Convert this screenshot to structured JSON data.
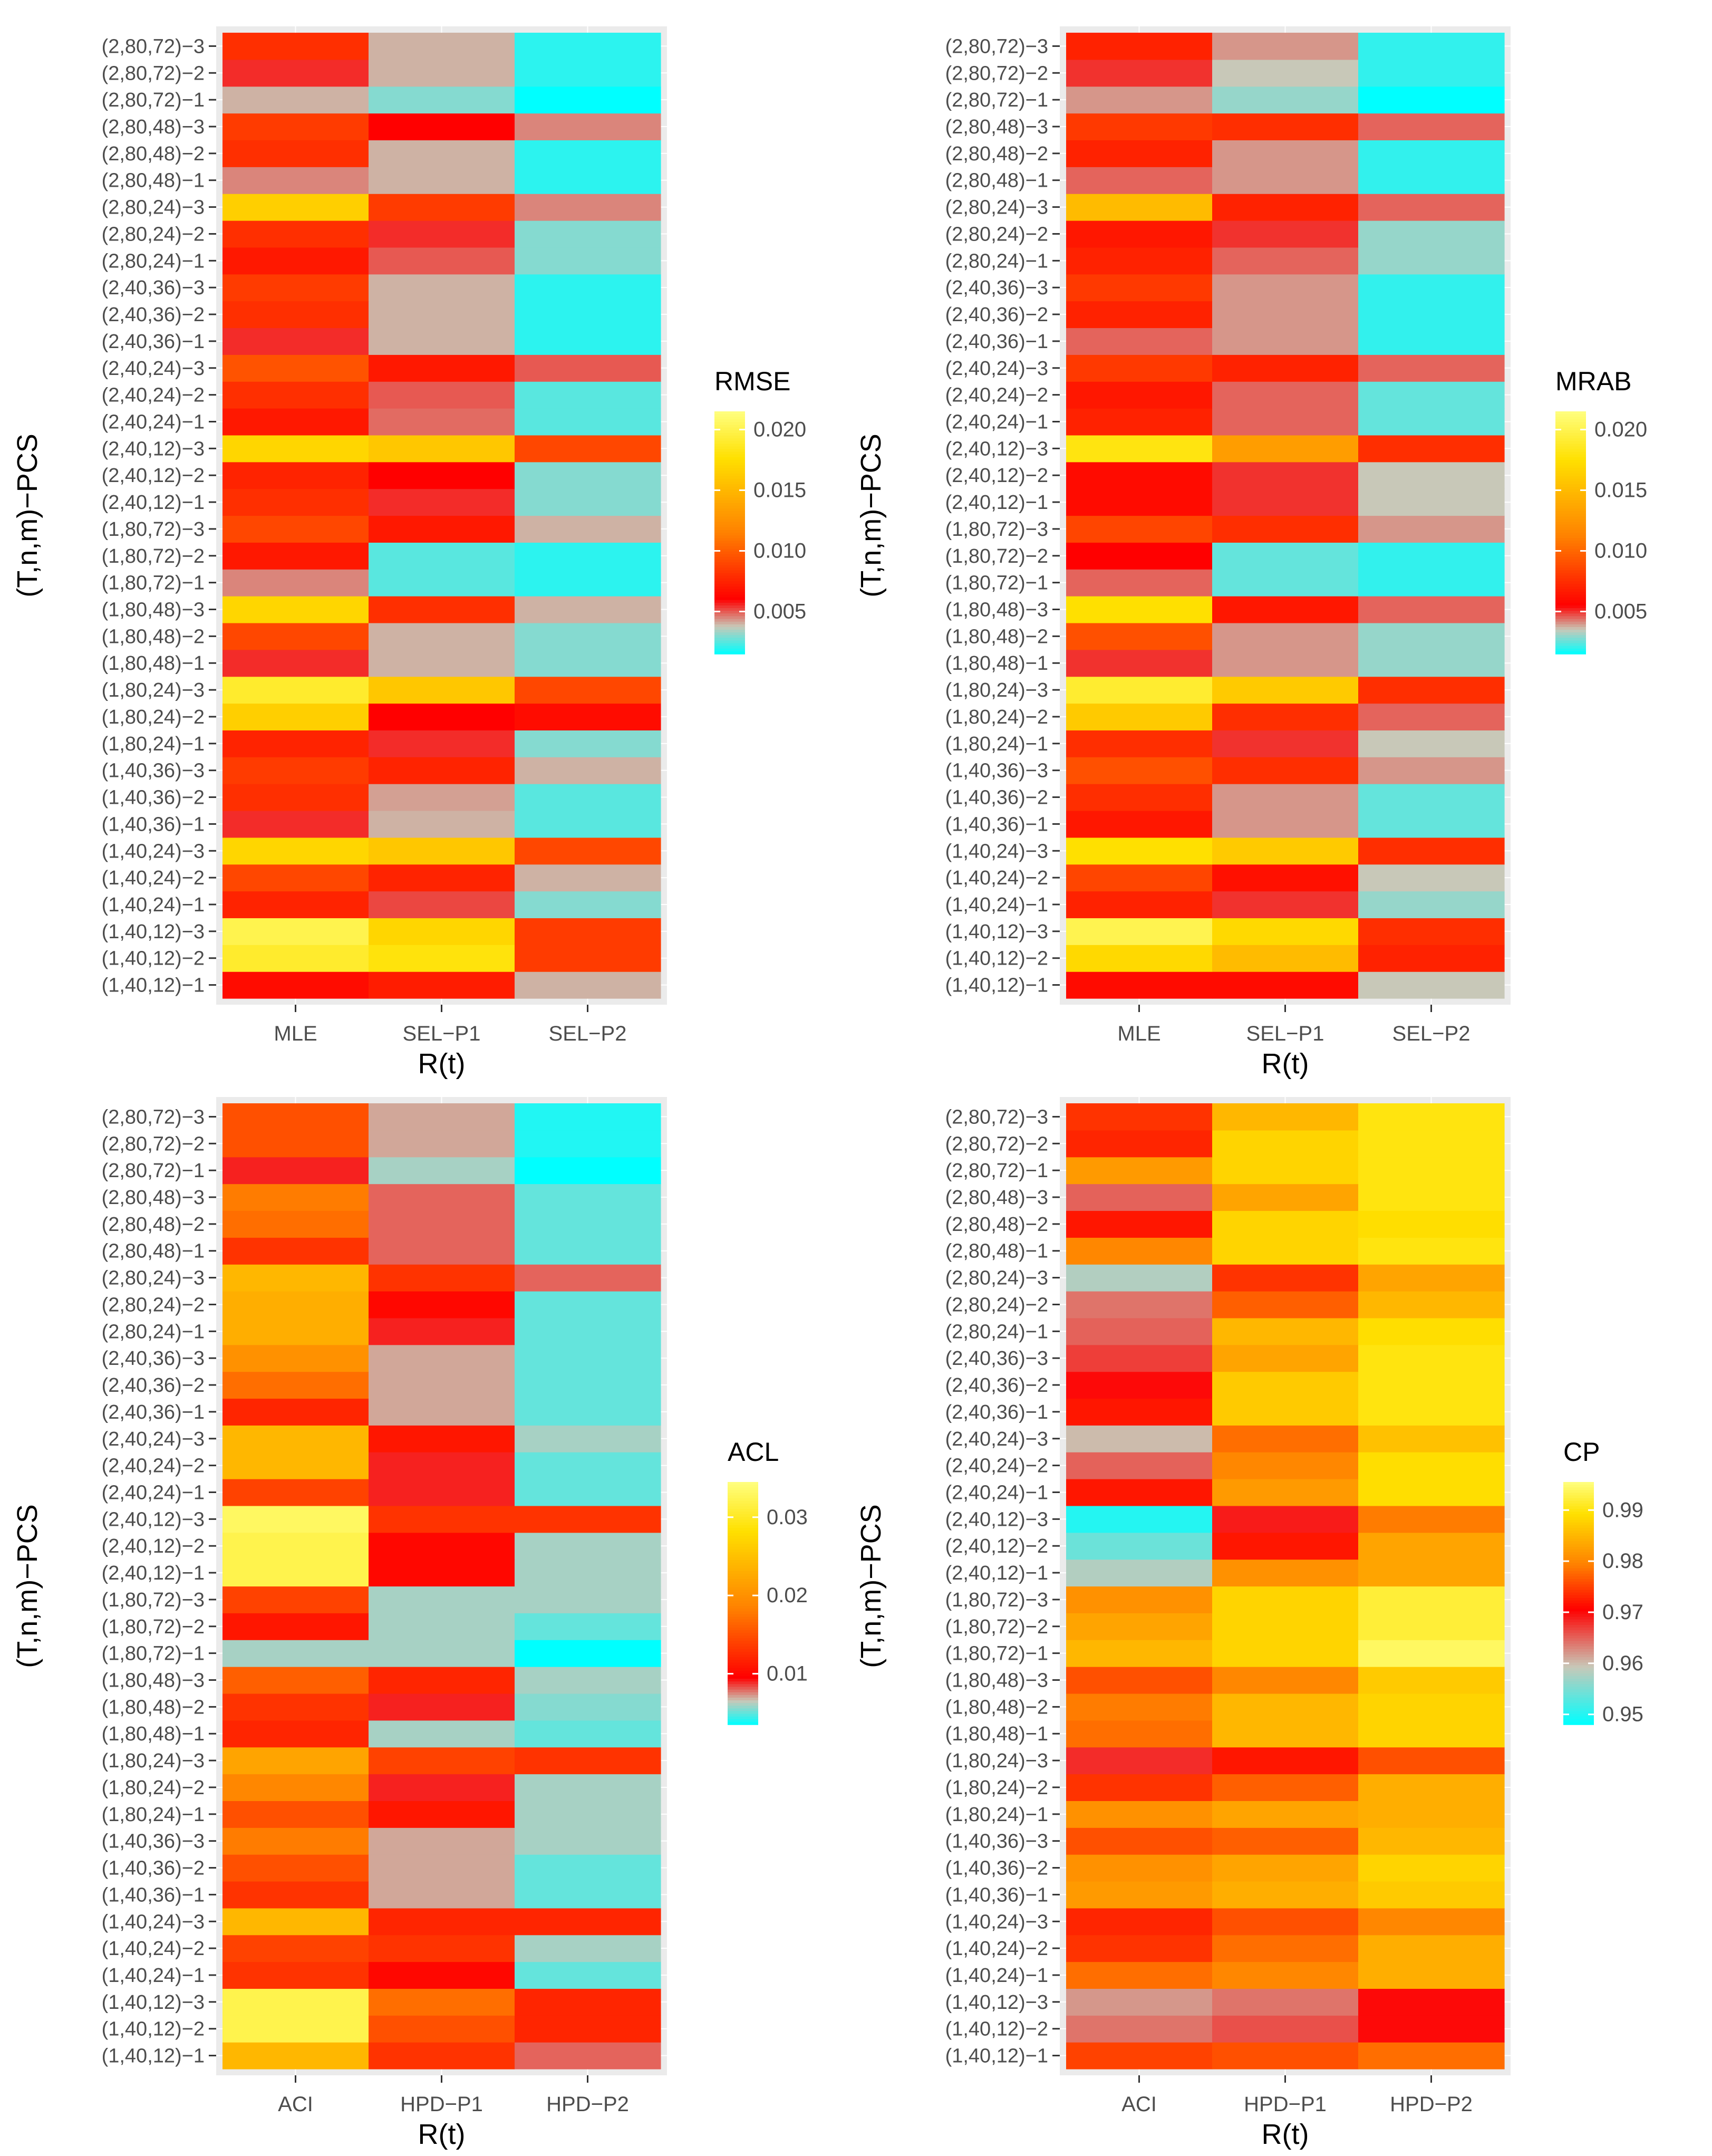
{
  "colors": {
    "panel_background": "#ebebeb",
    "gridline": "#ffffff",
    "tick_text": "#4d4d4d",
    "axis_title": "#000000",
    "scale_low": "#00ffff",
    "scale_mid": "#ff0000",
    "scale_high": "#ffff80"
  },
  "chart_data": [
    {
      "type": "heatmap",
      "title": "",
      "xlabel": "R(t)",
      "ylabel": "(T,n,m)−PCS",
      "legend_title": "RMSE",
      "legend_position": "right",
      "x": [
        "MLE",
        "SEL−P1",
        "SEL−P2"
      ],
      "y": [
        "(1,40,12)−1",
        "(1,40,12)−2",
        "(1,40,12)−3",
        "(1,40,24)−1",
        "(1,40,24)−2",
        "(1,40,24)−3",
        "(1,40,36)−1",
        "(1,40,36)−2",
        "(1,40,36)−3",
        "(1,80,24)−1",
        "(1,80,24)−2",
        "(1,80,24)−3",
        "(1,80,48)−1",
        "(1,80,48)−2",
        "(1,80,48)−3",
        "(1,80,72)−1",
        "(1,80,72)−2",
        "(1,80,72)−3",
        "(2,40,12)−1",
        "(2,40,12)−2",
        "(2,40,12)−3",
        "(2,40,24)−1",
        "(2,40,24)−2",
        "(2,40,24)−3",
        "(2,40,36)−1",
        "(2,40,36)−2",
        "(2,40,36)−3",
        "(2,80,24)−1",
        "(2,80,24)−2",
        "(2,80,24)−3",
        "(2,80,48)−1",
        "(2,80,48)−2",
        "(2,80,48)−3",
        "(2,80,72)−1",
        "(2,80,72)−2",
        "(2,80,72)−3"
      ],
      "values": [
        [
          0.0065,
          0.0072,
          0.004
        ],
        [
          0.019,
          0.018,
          0.0085
        ],
        [
          0.02,
          0.017,
          0.0085
        ],
        [
          0.0075,
          0.0052,
          0.003
        ],
        [
          0.009,
          0.0075,
          0.004
        ],
        [
          0.017,
          0.016,
          0.009
        ],
        [
          0.0055,
          0.004,
          0.0025
        ],
        [
          0.008,
          0.0042,
          0.0025
        ],
        [
          0.0085,
          0.0075,
          0.004
        ],
        [
          0.0075,
          0.0055,
          0.003
        ],
        [
          0.0165,
          0.006,
          0.0065
        ],
        [
          0.019,
          0.016,
          0.009
        ],
        [
          0.0055,
          0.004,
          0.003
        ],
        [
          0.009,
          0.004,
          0.003
        ],
        [
          0.017,
          0.008,
          0.004
        ],
        [
          0.0045,
          0.0025,
          0.002
        ],
        [
          0.007,
          0.0025,
          0.002
        ],
        [
          0.009,
          0.007,
          0.004
        ],
        [
          0.008,
          0.0055,
          0.003
        ],
        [
          0.0075,
          0.006,
          0.003
        ],
        [
          0.017,
          0.016,
          0.009
        ],
        [
          0.007,
          0.0048,
          0.0025
        ],
        [
          0.008,
          0.005,
          0.0025
        ],
        [
          0.0095,
          0.007,
          0.005
        ],
        [
          0.0055,
          0.004,
          0.002
        ],
        [
          0.008,
          0.004,
          0.002
        ],
        [
          0.0085,
          0.004,
          0.002
        ],
        [
          0.007,
          0.005,
          0.003
        ],
        [
          0.008,
          0.0055,
          0.003
        ],
        [
          0.0165,
          0.0085,
          0.0045
        ],
        [
          0.0045,
          0.004,
          0.002
        ],
        [
          0.008,
          0.004,
          0.002
        ],
        [
          0.0085,
          0.006,
          0.0045
        ],
        [
          0.004,
          0.003,
          0.001
        ],
        [
          0.0055,
          0.004,
          0.002
        ],
        [
          0.008,
          0.004,
          0.002
        ]
      ],
      "scale": {
        "min": 0.0015,
        "max": 0.0215,
        "mid": 0.006,
        "breaks": [
          0.005,
          0.01,
          0.015,
          0.02
        ],
        "break_labels": [
          "0.005",
          "0.010",
          "0.015",
          "0.020"
        ]
      }
    },
    {
      "type": "heatmap",
      "title": "",
      "xlabel": "R(t)",
      "ylabel": "(T,n,m)−PCS",
      "legend_title": "MRAB",
      "legend_position": "right",
      "x": [
        "MLE",
        "SEL−P1",
        "SEL−P2"
      ],
      "y": [
        "(1,40,12)−1",
        "(1,40,12)−2",
        "(1,40,12)−3",
        "(1,40,24)−1",
        "(1,40,24)−2",
        "(1,40,24)−3",
        "(1,40,36)−1",
        "(1,40,36)−2",
        "(1,40,36)−3",
        "(1,80,24)−1",
        "(1,80,24)−2",
        "(1,80,24)−3",
        "(1,80,48)−1",
        "(1,80,48)−2",
        "(1,80,48)−3",
        "(1,80,72)−1",
        "(1,80,72)−2",
        "(1,80,72)−3",
        "(2,40,12)−1",
        "(2,40,12)−2",
        "(2,40,12)−3",
        "(2,40,24)−1",
        "(2,40,24)−2",
        "(2,40,24)−3",
        "(2,40,36)−1",
        "(2,40,36)−2",
        "(2,40,36)−3",
        "(2,80,24)−1",
        "(2,80,24)−2",
        "(2,80,24)−3",
        "(2,80,48)−1",
        "(2,80,48)−2",
        "(2,80,48)−3",
        "(2,80,72)−1",
        "(2,80,72)−2",
        "(2,80,72)−3"
      ],
      "values": [
        [
          0.006,
          0.006,
          0.0035
        ],
        [
          0.017,
          0.015,
          0.007
        ],
        [
          0.02,
          0.017,
          0.0075
        ],
        [
          0.007,
          0.005,
          0.003
        ],
        [
          0.0085,
          0.0062,
          0.0035
        ],
        [
          0.0175,
          0.016,
          0.0075
        ],
        [
          0.0065,
          0.004,
          0.0025
        ],
        [
          0.0075,
          0.004,
          0.0025
        ],
        [
          0.009,
          0.0075,
          0.004
        ],
        [
          0.0075,
          0.005,
          0.0035
        ],
        [
          0.016,
          0.0075,
          0.0045
        ],
        [
          0.019,
          0.016,
          0.0075
        ],
        [
          0.005,
          0.004,
          0.003
        ],
        [
          0.009,
          0.004,
          0.003
        ],
        [
          0.0175,
          0.0065,
          0.0045
        ],
        [
          0.0045,
          0.0025,
          0.002
        ],
        [
          0.0055,
          0.0025,
          0.002
        ],
        [
          0.0085,
          0.0075,
          0.004
        ],
        [
          0.006,
          0.005,
          0.0035
        ],
        [
          0.006,
          0.005,
          0.0035
        ],
        [
          0.018,
          0.013,
          0.0075
        ],
        [
          0.007,
          0.0045,
          0.0025
        ],
        [
          0.0065,
          0.0045,
          0.0025
        ],
        [
          0.008,
          0.007,
          0.0045
        ],
        [
          0.0045,
          0.004,
          0.002
        ],
        [
          0.007,
          0.004,
          0.002
        ],
        [
          0.008,
          0.004,
          0.002
        ],
        [
          0.007,
          0.0045,
          0.003
        ],
        [
          0.0065,
          0.005,
          0.003
        ],
        [
          0.015,
          0.007,
          0.0045
        ],
        [
          0.0045,
          0.004,
          0.002
        ],
        [
          0.007,
          0.004,
          0.002
        ],
        [
          0.008,
          0.0075,
          0.0045
        ],
        [
          0.004,
          0.003,
          0.0015
        ],
        [
          0.005,
          0.0035,
          0.002
        ],
        [
          0.007,
          0.004,
          0.002
        ]
      ],
      "scale": {
        "min": 0.0015,
        "max": 0.0215,
        "mid": 0.0055,
        "breaks": [
          0.005,
          0.01,
          0.015,
          0.02
        ],
        "break_labels": [
          "0.005",
          "0.010",
          "0.015",
          "0.020"
        ]
      }
    },
    {
      "type": "heatmap",
      "title": "",
      "xlabel": "R(t)",
      "ylabel": "(T,n,m)−PCS",
      "legend_title": "ACL",
      "legend_position": "right",
      "x": [
        "ACI",
        "HPD−P1",
        "HPD−P2"
      ],
      "y": [
        "(1,40,12)−1",
        "(1,40,12)−2",
        "(1,40,12)−3",
        "(1,40,24)−1",
        "(1,40,24)−2",
        "(1,40,24)−3",
        "(1,40,36)−1",
        "(1,40,36)−2",
        "(1,40,36)−3",
        "(1,80,24)−1",
        "(1,80,24)−2",
        "(1,80,24)−3",
        "(1,80,48)−1",
        "(1,80,48)−2",
        "(1,80,48)−3",
        "(1,80,72)−1",
        "(1,80,72)−2",
        "(1,80,72)−3",
        "(2,40,12)−1",
        "(2,40,12)−2",
        "(2,40,12)−3",
        "(2,40,24)−1",
        "(2,40,24)−2",
        "(2,40,24)−3",
        "(2,40,36)−1",
        "(2,40,36)−2",
        "(2,40,36)−3",
        "(2,80,24)−1",
        "(2,80,24)−2",
        "(2,80,24)−3",
        "(2,80,48)−1",
        "(2,80,48)−2",
        "(2,80,48)−3",
        "(2,80,72)−1",
        "(2,80,72)−2",
        "(2,80,72)−3"
      ],
      "values": [
        [
          0.024,
          0.013,
          0.008
        ],
        [
          0.032,
          0.015,
          0.012
        ],
        [
          0.032,
          0.017,
          0.012
        ],
        [
          0.013,
          0.01,
          0.005
        ],
        [
          0.014,
          0.013,
          0.006
        ],
        [
          0.024,
          0.012,
          0.012
        ],
        [
          0.013,
          0.007,
          0.005
        ],
        [
          0.015,
          0.007,
          0.005
        ],
        [
          0.018,
          0.007,
          0.006
        ],
        [
          0.015,
          0.011,
          0.006
        ],
        [
          0.019,
          0.009,
          0.006
        ],
        [
          0.022,
          0.014,
          0.013
        ],
        [
          0.012,
          0.006,
          0.005
        ],
        [
          0.013,
          0.009,
          0.0055
        ],
        [
          0.016,
          0.012,
          0.006
        ],
        [
          0.006,
          0.006,
          0.003
        ],
        [
          0.011,
          0.006,
          0.005
        ],
        [
          0.014,
          0.006,
          0.006
        ],
        [
          0.032,
          0.01,
          0.006
        ],
        [
          0.032,
          0.01,
          0.006
        ],
        [
          0.033,
          0.013,
          0.013
        ],
        [
          0.014,
          0.009,
          0.005
        ],
        [
          0.024,
          0.009,
          0.005
        ],
        [
          0.024,
          0.011,
          0.006
        ],
        [
          0.012,
          0.007,
          0.005
        ],
        [
          0.017,
          0.007,
          0.005
        ],
        [
          0.02,
          0.007,
          0.005
        ],
        [
          0.023,
          0.009,
          0.005
        ],
        [
          0.023,
          0.01,
          0.005
        ],
        [
          0.024,
          0.013,
          0.008
        ],
        [
          0.013,
          0.008,
          0.005
        ],
        [
          0.017,
          0.008,
          0.005
        ],
        [
          0.018,
          0.008,
          0.005
        ],
        [
          0.009,
          0.006,
          0.003
        ],
        [
          0.015,
          0.007,
          0.004
        ],
        [
          0.015,
          0.007,
          0.004
        ]
      ],
      "scale": {
        "min": 0.0035,
        "max": 0.0345,
        "mid": 0.0095,
        "breaks": [
          0.01,
          0.02,
          0.03
        ],
        "break_labels": [
          "0.01",
          "0.02",
          "0.03"
        ]
      }
    },
    {
      "type": "heatmap",
      "title": "",
      "xlabel": "R(t)",
      "ylabel": "(T,n,m)−PCS",
      "legend_title": "CP",
      "legend_position": "right",
      "x": [
        "ACI",
        "HPD−P1",
        "HPD−P2"
      ],
      "y": [
        "(1,40,12)−1",
        "(1,40,12)−2",
        "(1,40,12)−3",
        "(1,40,24)−1",
        "(1,40,24)−2",
        "(1,40,24)−3",
        "(1,40,36)−1",
        "(1,40,36)−2",
        "(1,40,36)−3",
        "(1,80,24)−1",
        "(1,80,24)−2",
        "(1,80,24)−3",
        "(1,80,48)−1",
        "(1,80,48)−2",
        "(1,80,48)−3",
        "(1,80,72)−1",
        "(1,80,72)−2",
        "(1,80,72)−3",
        "(2,40,12)−1",
        "(2,40,12)−2",
        "(2,40,12)−3",
        "(2,40,24)−1",
        "(2,40,24)−2",
        "(2,40,24)−3",
        "(2,40,36)−1",
        "(2,40,36)−2",
        "(2,40,36)−3",
        "(2,80,24)−1",
        "(2,80,24)−2",
        "(2,80,24)−3",
        "(2,80,48)−1",
        "(2,80,48)−2",
        "(2,80,48)−3",
        "(2,80,72)−1",
        "(2,80,72)−2",
        "(2,80,72)−3"
      ],
      "values": [
        [
          0.975,
          0.976,
          0.978
        ],
        [
          0.964,
          0.966,
          0.97
        ],
        [
          0.962,
          0.964,
          0.97
        ],
        [
          0.978,
          0.98,
          0.984
        ],
        [
          0.974,
          0.978,
          0.984
        ],
        [
          0.973,
          0.976,
          0.98
        ],
        [
          0.982,
          0.984,
          0.987
        ],
        [
          0.981,
          0.983,
          0.988
        ],
        [
          0.976,
          0.977,
          0.985
        ],
        [
          0.981,
          0.983,
          0.984
        ],
        [
          0.974,
          0.977,
          0.984
        ],
        [
          0.968,
          0.972,
          0.976
        ],
        [
          0.978,
          0.985,
          0.988
        ],
        [
          0.979,
          0.985,
          0.988
        ],
        [
          0.976,
          0.98,
          0.987
        ],
        [
          0.985,
          0.988,
          0.994
        ],
        [
          0.983,
          0.988,
          0.992
        ],
        [
          0.981,
          0.988,
          0.992
        ],
        [
          0.958,
          0.981,
          0.983
        ],
        [
          0.954,
          0.972,
          0.983
        ],
        [
          0.95,
          0.969,
          0.979
        ],
        [
          0.972,
          0.982,
          0.989
        ],
        [
          0.965,
          0.98,
          0.989
        ],
        [
          0.96,
          0.978,
          0.986
        ],
        [
          0.972,
          0.987,
          0.99
        ],
        [
          0.97,
          0.987,
          0.99
        ],
        [
          0.967,
          0.983,
          0.99
        ],
        [
          0.965,
          0.985,
          0.989
        ],
        [
          0.964,
          0.977,
          0.985
        ],
        [
          0.958,
          0.974,
          0.983
        ],
        [
          0.98,
          0.988,
          0.99
        ],
        [
          0.972,
          0.988,
          0.989
        ],
        [
          0.965,
          0.983,
          0.99
        ],
        [
          0.982,
          0.988,
          0.99
        ],
        [
          0.973,
          0.988,
          0.99
        ],
        [
          0.974,
          0.985,
          0.99
        ]
      ],
      "scale": {
        "min": 0.948,
        "max": 0.9955,
        "mid": 0.9705,
        "breaks": [
          0.95,
          0.96,
          0.97,
          0.98,
          0.99
        ],
        "break_labels": [
          "0.95",
          "0.96",
          "0.97",
          "0.98",
          "0.99"
        ]
      }
    }
  ]
}
